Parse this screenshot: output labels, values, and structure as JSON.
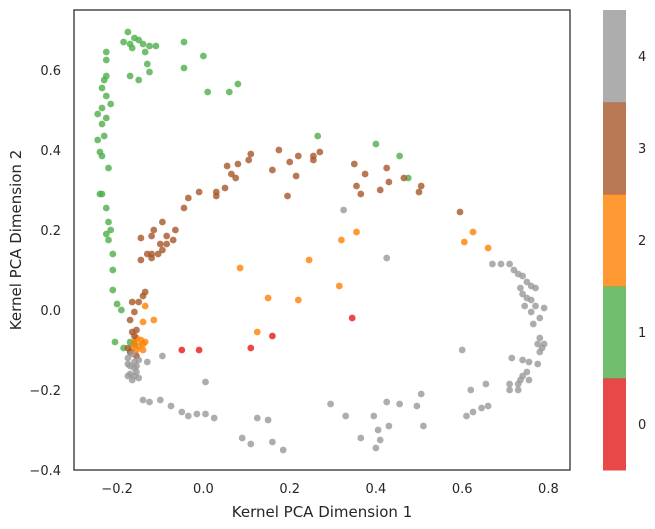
{
  "chart_data": {
    "type": "scatter",
    "title": "",
    "xlabel": "Kernel PCA Dimension 1",
    "ylabel": "Kernel PCA Dimension 2",
    "xlim": [
      -0.3,
      0.85
    ],
    "ylim": [
      -0.4,
      0.75
    ],
    "x_ticks": [
      -0.2,
      0.0,
      0.2,
      0.4,
      0.6,
      0.8
    ],
    "x_tick_labels": [
      "−0.2",
      "0.0",
      "0.2",
      "0.4",
      "0.6",
      "0.8"
    ],
    "y_ticks": [
      -0.4,
      -0.2,
      0.0,
      0.2,
      0.4,
      0.6
    ],
    "y_tick_labels": [
      "−0.4",
      "−0.2",
      "0.0",
      "0.2",
      "0.4",
      "0.6"
    ],
    "grid": false,
    "legend": "none",
    "colorbar": {
      "range": [
        -0.5,
        4.5
      ],
      "ticks": [
        0,
        1,
        2,
        3,
        4
      ],
      "tick_labels": [
        "0",
        "1",
        "2",
        "3",
        "4"
      ],
      "colors": [
        "#e41a1c",
        "#4daf4a",
        "#ff7f00",
        "#a65628",
        "#999999"
      ]
    },
    "point_alpha": 0.8,
    "series": [
      {
        "class": 0,
        "color": "#e41a1c",
        "points": [
          [
            -0.05,
            -0.1
          ],
          [
            -0.01,
            -0.1
          ],
          [
            0.11,
            -0.095
          ],
          [
            0.16,
            -0.065
          ],
          [
            0.345,
            -0.02
          ]
        ]
      },
      {
        "class": 1,
        "color": "#4daf4a",
        "points": [
          [
            -0.175,
            0.695
          ],
          [
            -0.185,
            0.67
          ],
          [
            -0.17,
            0.665
          ],
          [
            -0.16,
            0.68
          ],
          [
            -0.15,
            0.675
          ],
          [
            -0.14,
            0.665
          ],
          [
            -0.125,
            0.66
          ],
          [
            -0.11,
            0.66
          ],
          [
            -0.165,
            0.655
          ],
          [
            -0.135,
            0.645
          ],
          [
            -0.225,
            0.645
          ],
          [
            -0.045,
            0.67
          ],
          [
            0.0,
            0.635
          ],
          [
            -0.13,
            0.615
          ],
          [
            -0.045,
            0.605
          ],
          [
            -0.125,
            0.595
          ],
          [
            -0.225,
            0.625
          ],
          [
            -0.17,
            0.585
          ],
          [
            -0.15,
            0.575
          ],
          [
            -0.225,
            0.585
          ],
          [
            -0.23,
            0.575
          ],
          [
            -0.235,
            0.555
          ],
          [
            0.08,
            0.565
          ],
          [
            0.06,
            0.545
          ],
          [
            0.01,
            0.545
          ],
          [
            -0.225,
            0.535
          ],
          [
            -0.215,
            0.515
          ],
          [
            -0.235,
            0.505
          ],
          [
            -0.245,
            0.49
          ],
          [
            -0.225,
            0.48
          ],
          [
            -0.235,
            0.465
          ],
          [
            -0.23,
            0.435
          ],
          [
            -0.245,
            0.425
          ],
          [
            -0.24,
            0.395
          ],
          [
            -0.235,
            0.385
          ],
          [
            -0.22,
            0.355
          ],
          [
            -0.24,
            0.29
          ],
          [
            -0.235,
            0.29
          ],
          [
            -0.225,
            0.255
          ],
          [
            -0.22,
            0.22
          ],
          [
            -0.215,
            0.2
          ],
          [
            -0.225,
            0.19
          ],
          [
            -0.22,
            0.175
          ],
          [
            -0.21,
            0.14
          ],
          [
            -0.21,
            0.1
          ],
          [
            -0.21,
            0.05
          ],
          [
            -0.2,
            0.015
          ],
          [
            -0.19,
            0.0
          ],
          [
            -0.205,
            -0.08
          ],
          [
            -0.185,
            -0.095
          ],
          [
            -0.17,
            -0.08
          ],
          [
            -0.16,
            -0.085
          ],
          [
            0.265,
            0.435
          ],
          [
            0.4,
            0.415
          ],
          [
            0.455,
            0.385
          ],
          [
            0.475,
            0.33
          ]
        ]
      },
      {
        "class": 2,
        "color": "#ff7f00",
        "points": [
          [
            0.355,
            0.195
          ],
          [
            0.32,
            0.175
          ],
          [
            0.625,
            0.195
          ],
          [
            0.66,
            0.155
          ],
          [
            0.245,
            0.125
          ],
          [
            0.085,
            0.105
          ],
          [
            0.315,
            0.06
          ],
          [
            0.15,
            0.03
          ],
          [
            0.22,
            0.025
          ],
          [
            -0.135,
            0.01
          ],
          [
            -0.14,
            -0.03
          ],
          [
            -0.115,
            -0.025
          ],
          [
            -0.155,
            -0.07
          ],
          [
            -0.16,
            -0.08
          ],
          [
            -0.145,
            -0.075
          ],
          [
            -0.14,
            -0.085
          ],
          [
            -0.15,
            -0.09
          ],
          [
            -0.165,
            -0.095
          ],
          [
            -0.135,
            -0.08
          ],
          [
            -0.155,
            -0.1
          ],
          [
            -0.14,
            -0.1
          ],
          [
            0.125,
            -0.055
          ],
          [
            0.605,
            0.17
          ]
        ]
      },
      {
        "class": 3,
        "color": "#a65628",
        "points": [
          [
            0.27,
            0.395
          ],
          [
            0.255,
            0.385
          ],
          [
            0.255,
            0.375
          ],
          [
            0.22,
            0.385
          ],
          [
            0.175,
            0.4
          ],
          [
            0.11,
            0.39
          ],
          [
            0.105,
            0.375
          ],
          [
            0.08,
            0.365
          ],
          [
            0.055,
            0.36
          ],
          [
            0.065,
            0.34
          ],
          [
            0.075,
            0.33
          ],
          [
            0.35,
            0.365
          ],
          [
            0.375,
            0.34
          ],
          [
            0.425,
            0.355
          ],
          [
            0.465,
            0.33
          ],
          [
            0.41,
            0.3
          ],
          [
            0.505,
            0.31
          ],
          [
            0.5,
            0.295
          ],
          [
            0.355,
            0.31
          ],
          [
            0.365,
            0.29
          ],
          [
            0.43,
            0.32
          ],
          [
            0.215,
            0.335
          ],
          [
            0.2,
            0.37
          ],
          [
            0.16,
            0.35
          ],
          [
            0.05,
            0.305
          ],
          [
            0.03,
            0.295
          ],
          [
            0.03,
            0.285
          ],
          [
            -0.01,
            0.295
          ],
          [
            0.195,
            0.285
          ],
          [
            -0.035,
            0.28
          ],
          [
            -0.045,
            0.255
          ],
          [
            -0.095,
            0.22
          ],
          [
            -0.065,
            0.2
          ],
          [
            -0.085,
            0.185
          ],
          [
            -0.07,
            0.175
          ],
          [
            -0.085,
            0.165
          ],
          [
            -0.1,
            0.165
          ],
          [
            -0.115,
            0.2
          ],
          [
            -0.12,
            0.185
          ],
          [
            -0.145,
            0.18
          ],
          [
            -0.13,
            0.14
          ],
          [
            -0.12,
            0.14
          ],
          [
            -0.095,
            0.15
          ],
          [
            -0.105,
            0.14
          ],
          [
            -0.12,
            0.13
          ],
          [
            -0.145,
            0.125
          ],
          [
            0.595,
            0.245
          ],
          [
            -0.135,
            0.045
          ],
          [
            -0.14,
            0.035
          ],
          [
            -0.15,
            0.02
          ],
          [
            -0.165,
            0.02
          ],
          [
            -0.16,
            -0.005
          ],
          [
            -0.17,
            -0.025
          ],
          [
            -0.155,
            -0.05
          ],
          [
            -0.165,
            -0.055
          ],
          [
            -0.16,
            -0.065
          ],
          [
            -0.175,
            -0.095
          ],
          [
            -0.17,
            -0.105
          ],
          [
            -0.155,
            -0.115
          ]
        ]
      },
      {
        "class": 4,
        "color": "#999999",
        "points": [
          [
            0.325,
            0.25
          ],
          [
            0.425,
            0.13
          ],
          [
            0.67,
            0.115
          ],
          [
            0.69,
            0.115
          ],
          [
            0.71,
            0.115
          ],
          [
            0.72,
            0.1
          ],
          [
            0.73,
            0.09
          ],
          [
            0.74,
            0.085
          ],
          [
            0.75,
            0.07
          ],
          [
            0.76,
            0.06
          ],
          [
            0.77,
            0.055
          ],
          [
            0.735,
            0.055
          ],
          [
            0.74,
            0.04
          ],
          [
            0.75,
            0.03
          ],
          [
            0.76,
            0.025
          ],
          [
            0.77,
            0.01
          ],
          [
            0.79,
            0.005
          ],
          [
            0.745,
            0.01
          ],
          [
            0.76,
            -0.005
          ],
          [
            0.78,
            -0.02
          ],
          [
            0.765,
            -0.035
          ],
          [
            0.78,
            -0.07
          ],
          [
            0.775,
            -0.085
          ],
          [
            0.79,
            -0.085
          ],
          [
            0.785,
            -0.095
          ],
          [
            0.78,
            -0.105
          ],
          [
            0.6,
            -0.1
          ],
          [
            0.715,
            -0.12
          ],
          [
            0.74,
            -0.125
          ],
          [
            0.755,
            -0.13
          ],
          [
            0.775,
            -0.135
          ],
          [
            0.75,
            -0.155
          ],
          [
            0.74,
            -0.165
          ],
          [
            0.755,
            -0.175
          ],
          [
            0.735,
            -0.175
          ],
          [
            0.71,
            -0.185
          ],
          [
            0.73,
            -0.185
          ],
          [
            0.655,
            -0.185
          ],
          [
            0.73,
            -0.2
          ],
          [
            0.71,
            -0.2
          ],
          [
            0.62,
            -0.2
          ],
          [
            0.645,
            -0.245
          ],
          [
            0.66,
            -0.24
          ],
          [
            0.625,
            -0.255
          ],
          [
            0.61,
            -0.265
          ],
          [
            0.505,
            -0.21
          ],
          [
            0.455,
            -0.235
          ],
          [
            0.495,
            -0.24
          ],
          [
            0.295,
            -0.235
          ],
          [
            0.33,
            -0.265
          ],
          [
            0.425,
            -0.23
          ],
          [
            0.395,
            -0.265
          ],
          [
            0.51,
            -0.29
          ],
          [
            0.43,
            -0.29
          ],
          [
            0.405,
            -0.3
          ],
          [
            0.365,
            -0.32
          ],
          [
            0.41,
            -0.325
          ],
          [
            0.4,
            -0.345
          ],
          [
            0.15,
            -0.275
          ],
          [
            0.125,
            -0.27
          ],
          [
            0.09,
            -0.32
          ],
          [
            0.11,
            -0.335
          ],
          [
            0.16,
            -0.33
          ],
          [
            0.185,
            -0.35
          ],
          [
            -0.015,
            -0.26
          ],
          [
            0.005,
            -0.26
          ],
          [
            0.025,
            -0.27
          ],
          [
            -0.035,
            -0.265
          ],
          [
            -0.05,
            -0.255
          ],
          [
            -0.075,
            -0.24
          ],
          [
            -0.125,
            -0.23
          ],
          [
            -0.14,
            -0.225
          ],
          [
            -0.1,
            -0.225
          ],
          [
            0.005,
            -0.18
          ],
          [
            -0.095,
            -0.115
          ],
          [
            -0.13,
            -0.13
          ],
          [
            -0.15,
            -0.125
          ],
          [
            -0.16,
            -0.13
          ],
          [
            -0.17,
            -0.14
          ],
          [
            -0.17,
            -0.16
          ],
          [
            -0.155,
            -0.155
          ],
          [
            -0.16,
            -0.165
          ],
          [
            -0.165,
            -0.175
          ],
          [
            -0.15,
            -0.17
          ],
          [
            -0.175,
            -0.165
          ],
          [
            -0.16,
            -0.145
          ],
          [
            -0.175,
            -0.12
          ],
          [
            -0.165,
            -0.11
          ],
          [
            -0.175,
            -0.135
          ],
          [
            -0.155,
            -0.14
          ]
        ]
      }
    ]
  }
}
